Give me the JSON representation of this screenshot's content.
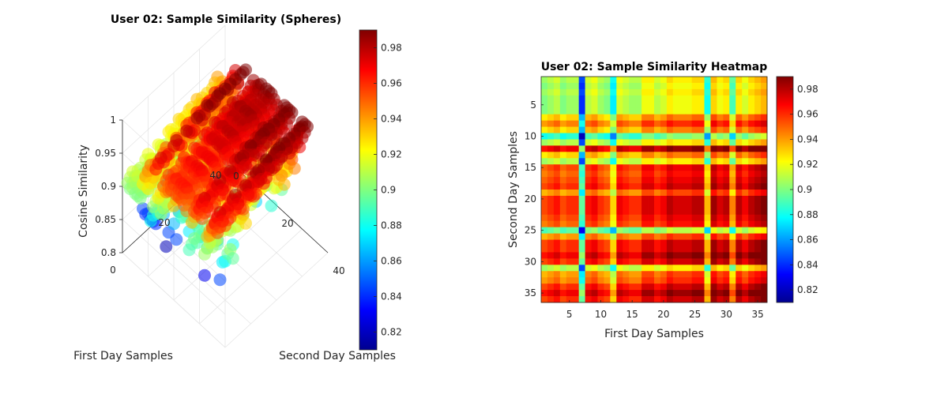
{
  "chart_data": [
    {
      "type": "scatter",
      "title": "User 02: Sample Similarity (Spheres)",
      "xlabel": "First Day Samples",
      "ylabel": "Second Day Samples",
      "zlabel": "Cosine Similarity",
      "xlim": [
        0,
        40
      ],
      "ylim": [
        0,
        40
      ],
      "zlim": [
        0.8,
        1
      ],
      "x_ticks": [
        "0",
        "20",
        "40"
      ],
      "y_ticks": [
        "0",
        "20",
        "40"
      ],
      "z_ticks": [
        "0.8",
        "0.85",
        "0.9",
        "0.95",
        "1"
      ],
      "grid": true,
      "colormap": "jet",
      "colorbar_range": [
        0.81,
        0.99
      ],
      "colorbar_ticks": [
        "0.82",
        "0.84",
        "0.86",
        "0.88",
        "0.9",
        "0.92",
        "0.94",
        "0.96",
        "0.98"
      ],
      "n": 36,
      "source": "same matrix as heatmap (z = similarity)"
    },
    {
      "type": "heatmap",
      "title": "User 02: Sample Similarity Heatmap",
      "xlabel": "First Day Samples",
      "ylabel": "Second Day Samples",
      "x_ticks": [
        "5",
        "10",
        "15",
        "20",
        "25",
        "30",
        "35"
      ],
      "y_ticks": [
        "5",
        "10",
        "15",
        "20",
        "25",
        "30",
        "35"
      ],
      "n": 36,
      "colormap": "jet",
      "colorbar_range": [
        0.81,
        0.99
      ],
      "colorbar_ticks": [
        "0.82",
        "0.84",
        "0.86",
        "0.88",
        "0.9",
        "0.92",
        "0.94",
        "0.96",
        "0.98"
      ],
      "column_means": [
        0.93,
        0.935,
        0.94,
        0.93,
        0.935,
        0.935,
        0.87,
        0.94,
        0.945,
        0.935,
        0.93,
        0.905,
        0.945,
        0.94,
        0.935,
        0.935,
        0.95,
        0.95,
        0.94,
        0.945,
        0.955,
        0.95,
        0.95,
        0.95,
        0.955,
        0.955,
        0.91,
        0.96,
        0.95,
        0.955,
        0.92,
        0.955,
        0.945,
        0.955,
        0.96,
        0.965
      ],
      "row_means": [
        0.905,
        0.9,
        0.905,
        0.9,
        0.9,
        0.9,
        0.925,
        0.94,
        0.925,
        0.88,
        0.905,
        0.965,
        0.925,
        0.905,
        0.95,
        0.945,
        0.95,
        0.955,
        0.935,
        0.955,
        0.955,
        0.955,
        0.95,
        0.945,
        0.89,
        0.935,
        0.955,
        0.955,
        0.965,
        0.955,
        0.905,
        0.935,
        0.94,
        0.955,
        0.965,
        0.955
      ],
      "model": "value(i,j) = row_means[i] + column_means[j] - 0.93, clipped to colorbar_range"
    }
  ]
}
